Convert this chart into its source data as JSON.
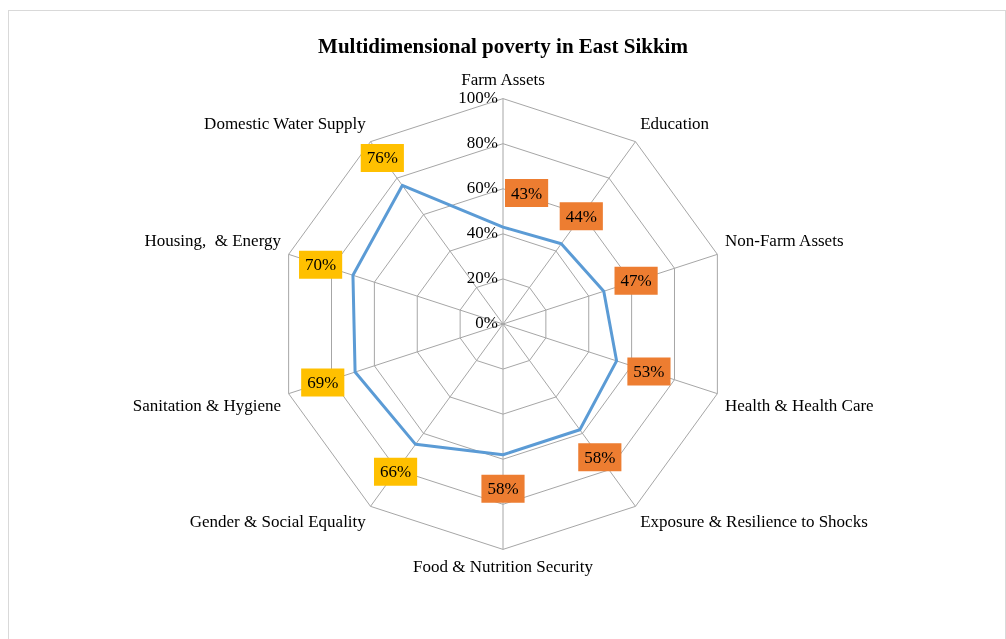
{
  "chart_data": {
    "type": "radar",
    "title": "Multidimensional poverty in East Sikkim",
    "categories": [
      "Farm Assets",
      "Education",
      "Non-Farm Assets",
      "Health & Health Care",
      "Exposure & Resilience to Shocks",
      "Food & Nutrition Security",
      "Gender & Social Equality",
      "Sanitation & Hygiene",
      "Housing,  & Energy",
      "Domestic Water Supply"
    ],
    "series": [
      {
        "color": "#5b9bd5",
        "values": [
          43,
          44,
          47,
          53,
          58,
          58,
          66,
          69,
          70,
          76
        ],
        "value_labels": [
          "43%",
          "44%",
          "47%",
          "53%",
          "58%",
          "58%",
          "66%",
          "69%",
          "70%",
          "76%"
        ],
        "colors": [
          "#ed7d31",
          "#ed7d31",
          "#ed7d31",
          "#ed7d31",
          "#ed7d31",
          "#ed7d31",
          "#ffc000",
          "#ffc000",
          "#ffc000",
          "#ffc000"
        ]
      }
    ],
    "ylim": [
      0,
      100
    ],
    "yticks": [
      {
        "value": 0,
        "label": "0%"
      },
      {
        "value": 20,
        "label": "20%"
      },
      {
        "value": 40,
        "label": "40%"
      },
      {
        "value": 60,
        "label": "60%"
      },
      {
        "value": 80,
        "label": "80%"
      },
      {
        "value": 100,
        "label": "100%"
      }
    ],
    "grid": true,
    "legend": false,
    "marker": "none",
    "line_style": "solid"
  }
}
